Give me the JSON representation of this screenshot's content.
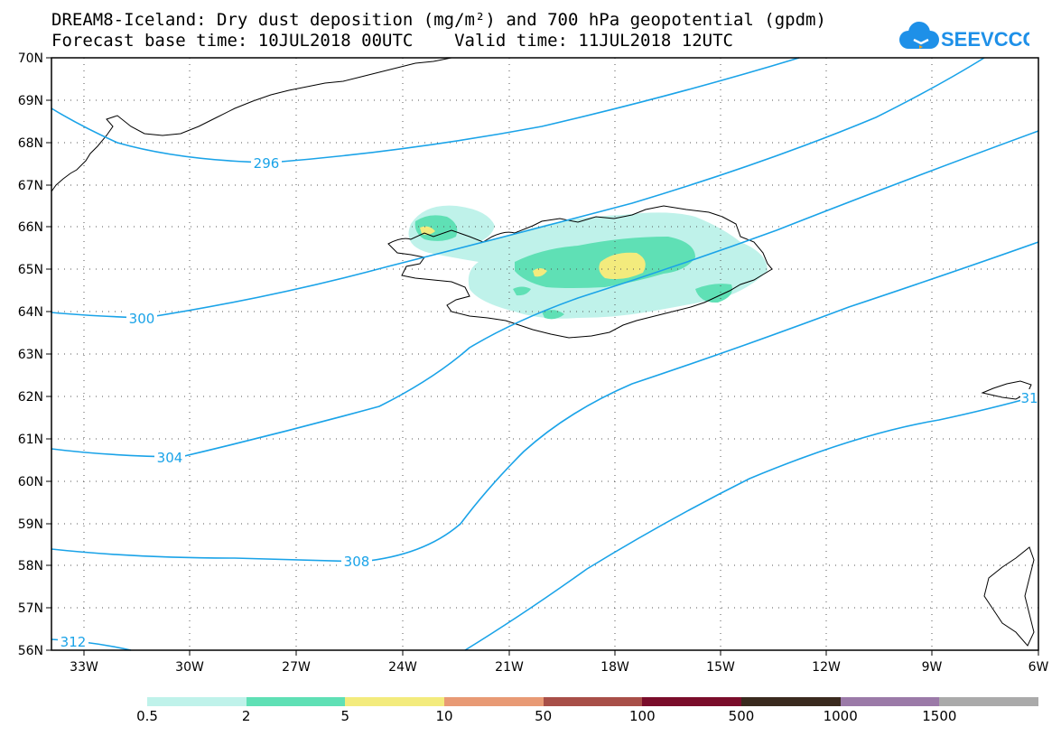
{
  "title": {
    "line1": "DREAM8-Iceland: Dry dust deposition (mg/m²) and 700 hPa geopotential (gpdm)",
    "line2": "Forecast base time: 10JUL2018 00UTC    Valid time: 11JUL2018 12UTC"
  },
  "logo": {
    "text": "SEEVCCC",
    "color": "#1e90e8"
  },
  "axes": {
    "lat_labels": [
      "70N",
      "69N",
      "68N",
      "67N",
      "66N",
      "65N",
      "64N",
      "63N",
      "62N",
      "61N",
      "60N",
      "59N",
      "58N",
      "57N",
      "56N"
    ],
    "lon_labels": [
      "33W",
      "30W",
      "27W",
      "24W",
      "21W",
      "18W",
      "15W",
      "12W",
      "9W",
      "6W"
    ]
  },
  "contours": {
    "color": "#1aa3e8",
    "labels": [
      "296",
      "300",
      "304",
      "308",
      "312",
      "31"
    ]
  },
  "legend": {
    "colors": [
      "#bff2ea",
      "#5fe0b5",
      "#f3eb7d",
      "#e89a75",
      "#a84f48",
      "#7a0d2b",
      "#3a2a1e",
      "#9b7aa8",
      "#aaaaaa"
    ],
    "labels": [
      "0.5",
      "2",
      "5",
      "10",
      "50",
      "100",
      "500",
      "1000",
      "1500"
    ]
  }
}
